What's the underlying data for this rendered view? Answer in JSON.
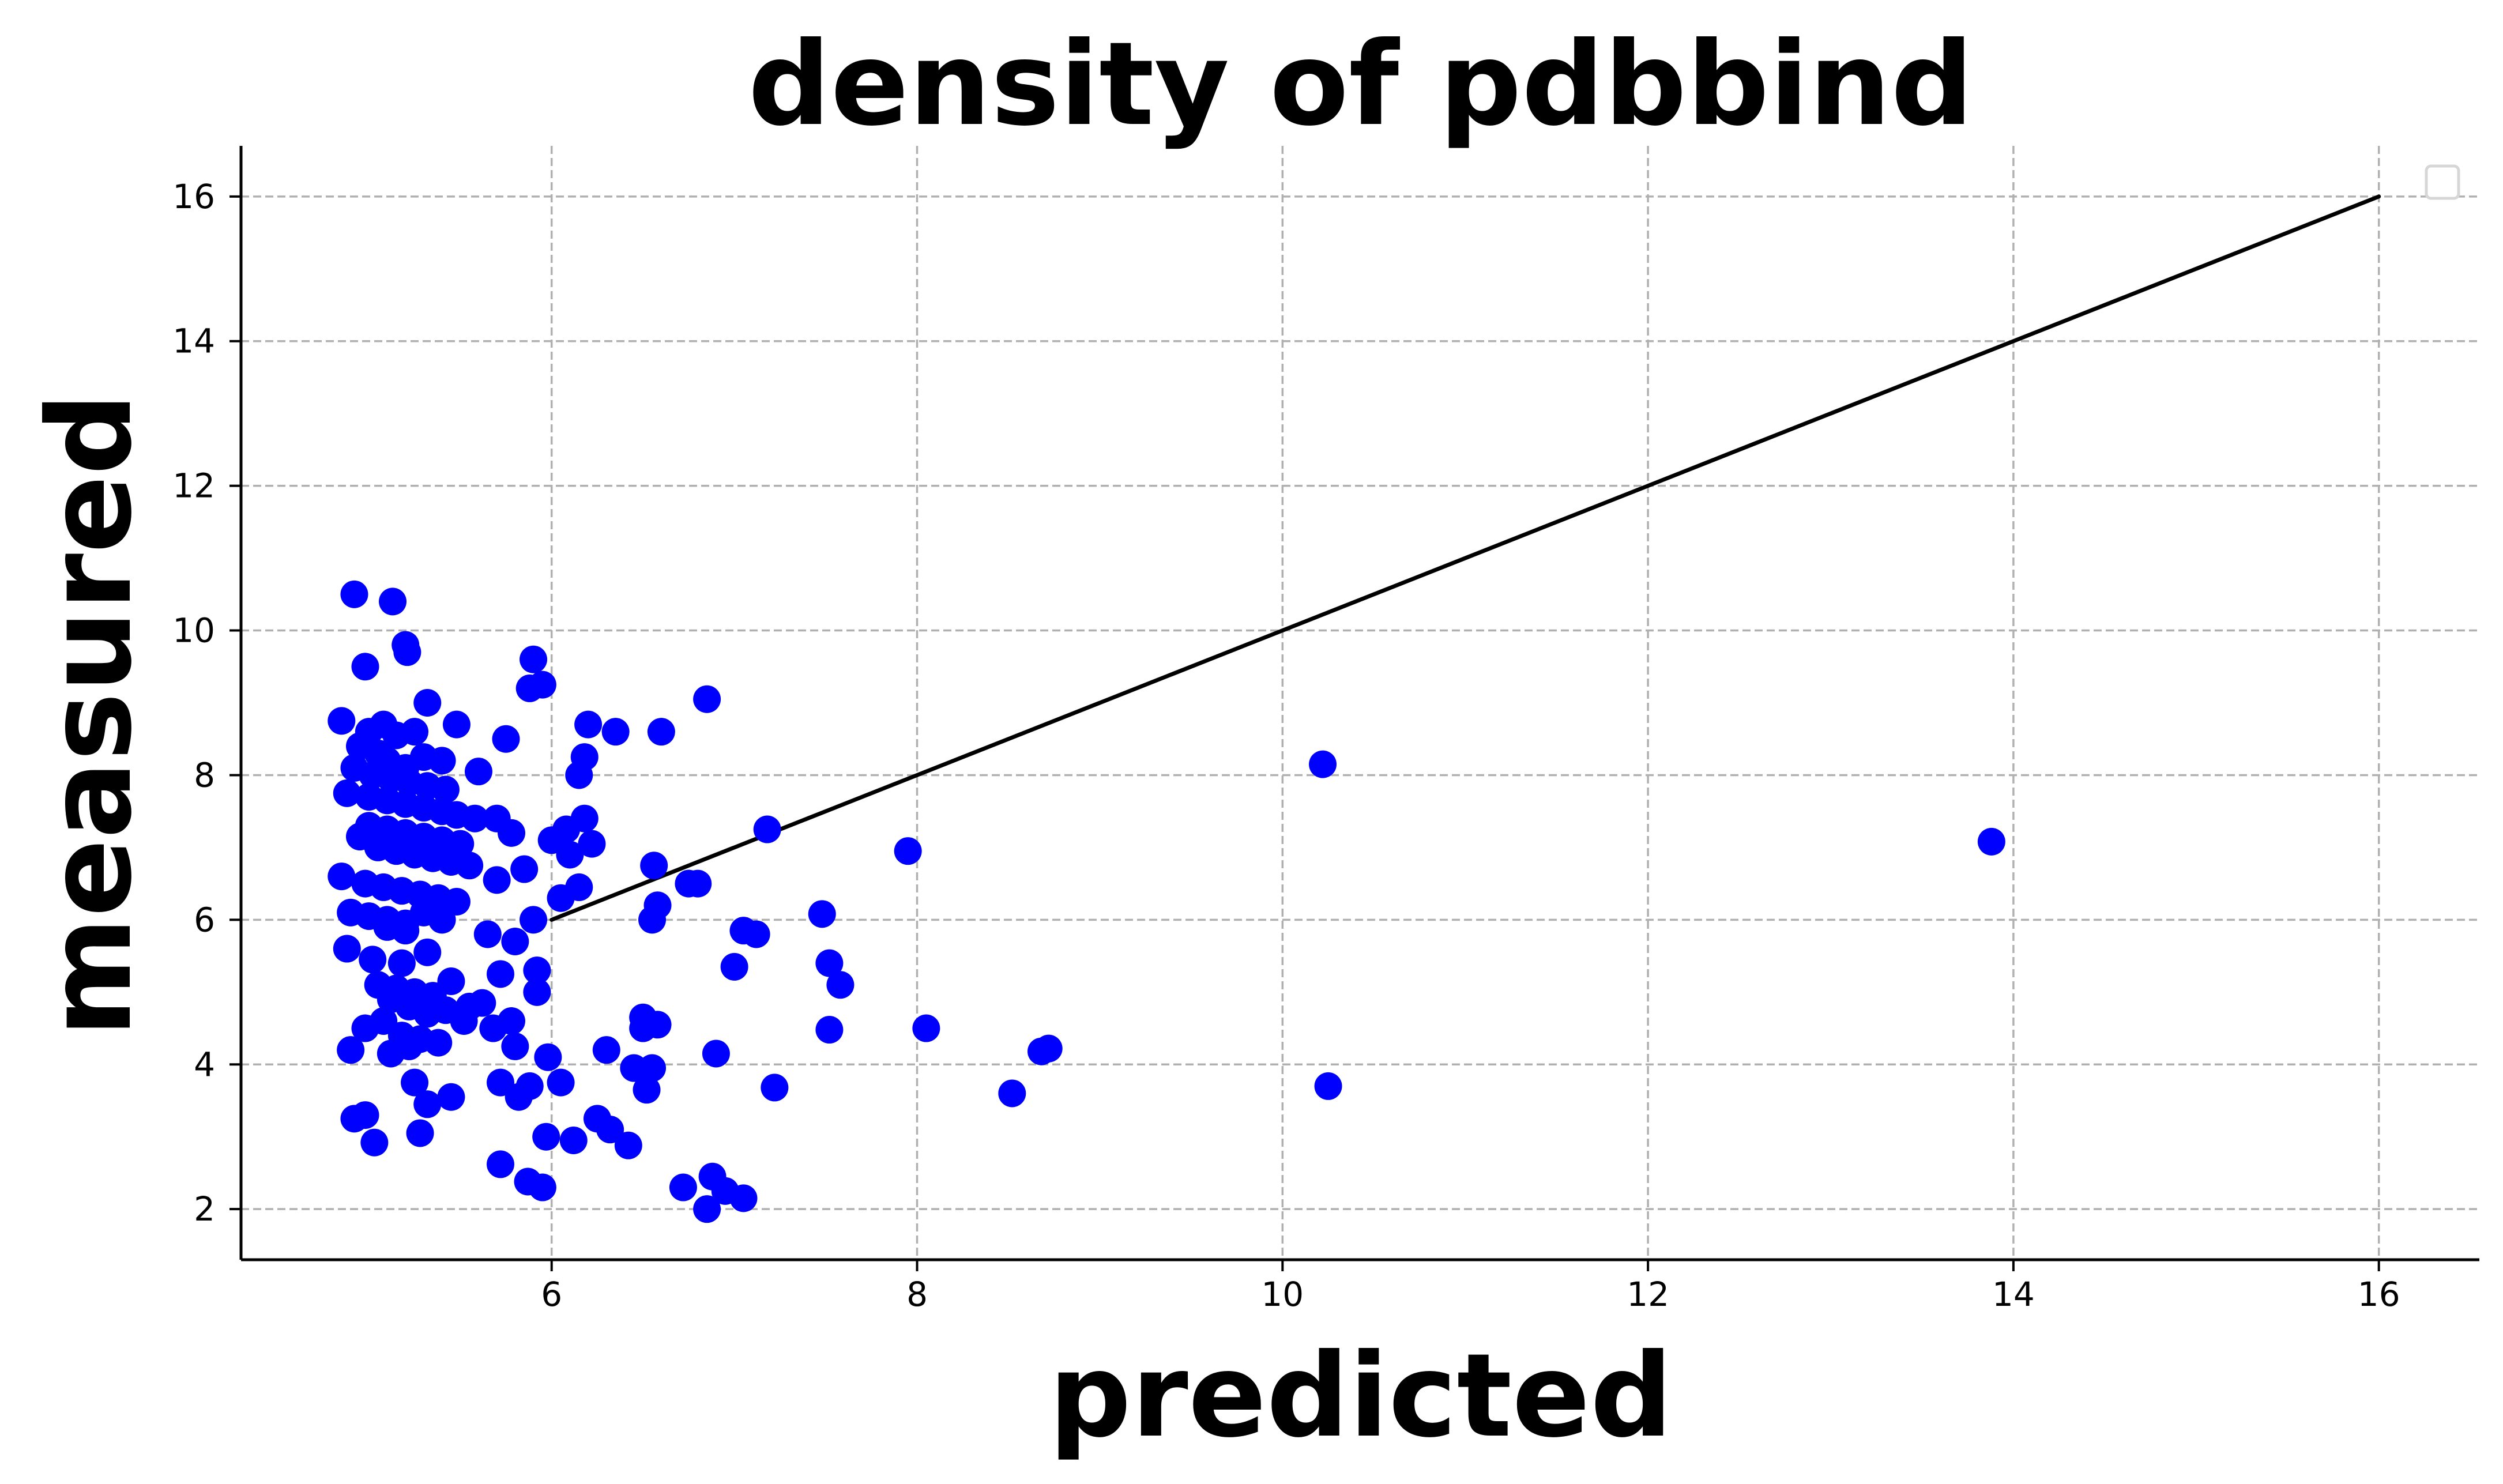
{
  "chart_data": {
    "type": "scatter",
    "title": "density of pdbbind",
    "xlabel": "predicted",
    "ylabel": "measured",
    "xlim": [
      4.3,
      16.55
    ],
    "ylim": [
      1.3,
      16.7
    ],
    "xticks": [
      6,
      8,
      10,
      12,
      14,
      16
    ],
    "yticks": [
      2,
      4,
      6,
      8,
      10,
      12,
      14,
      16
    ],
    "grid": true,
    "legend": "top-right (empty)",
    "colors": {
      "points": "#0000ff",
      "line": "#000000",
      "grid": "#b0b0b0"
    },
    "reference_line": {
      "x": [
        6,
        16
      ],
      "y": [
        6,
        16
      ]
    },
    "series": [
      {
        "points": [
          [
            4.85,
            8.75
          ],
          [
            4.92,
            10.5
          ],
          [
            5.13,
            10.4
          ],
          [
            5.2,
            9.8
          ],
          [
            5.21,
            9.7
          ],
          [
            4.98,
            9.5
          ],
          [
            5.32,
            9.0
          ],
          [
            5.48,
            8.7
          ],
          [
            5.08,
            8.7
          ],
          [
            5.0,
            8.6
          ],
          [
            5.15,
            8.55
          ],
          [
            5.25,
            8.6
          ],
          [
            4.95,
            8.4
          ],
          [
            5.05,
            8.3
          ],
          [
            5.1,
            8.2
          ],
          [
            5.2,
            8.1
          ],
          [
            5.3,
            8.25
          ],
          [
            5.4,
            8.2
          ],
          [
            4.92,
            8.1
          ],
          [
            5.02,
            8.0
          ],
          [
            5.12,
            7.95
          ],
          [
            5.22,
            7.9
          ],
          [
            5.32,
            7.85
          ],
          [
            5.42,
            7.8
          ],
          [
            4.88,
            7.75
          ],
          [
            5.0,
            7.7
          ],
          [
            5.1,
            7.65
          ],
          [
            5.2,
            7.6
          ],
          [
            5.3,
            7.55
          ],
          [
            5.4,
            7.5
          ],
          [
            5.48,
            7.45
          ],
          [
            5.58,
            7.4
          ],
          [
            5.0,
            7.3
          ],
          [
            5.1,
            7.25
          ],
          [
            5.2,
            7.2
          ],
          [
            5.3,
            7.15
          ],
          [
            5.4,
            7.1
          ],
          [
            5.5,
            7.05
          ],
          [
            4.95,
            7.15
          ],
          [
            5.05,
            7.0
          ],
          [
            5.15,
            6.95
          ],
          [
            5.25,
            6.9
          ],
          [
            5.35,
            6.85
          ],
          [
            5.45,
            6.8
          ],
          [
            5.55,
            6.75
          ],
          [
            4.85,
            6.6
          ],
          [
            4.98,
            6.5
          ],
          [
            5.08,
            6.45
          ],
          [
            5.18,
            6.4
          ],
          [
            5.28,
            6.35
          ],
          [
            5.38,
            6.3
          ],
          [
            5.48,
            6.25
          ],
          [
            4.9,
            6.1
          ],
          [
            5.0,
            6.05
          ],
          [
            5.1,
            6.0
          ],
          [
            5.2,
            5.95
          ],
          [
            5.3,
            6.1
          ],
          [
            5.4,
            6.0
          ],
          [
            5.1,
            5.9
          ],
          [
            5.2,
            5.85
          ],
          [
            4.88,
            5.6
          ],
          [
            5.02,
            5.45
          ],
          [
            5.18,
            5.4
          ],
          [
            5.32,
            5.55
          ],
          [
            5.05,
            5.1
          ],
          [
            5.15,
            5.05
          ],
          [
            5.25,
            5.0
          ],
          [
            5.35,
            4.95
          ],
          [
            5.45,
            5.15
          ],
          [
            5.55,
            4.8
          ],
          [
            5.12,
            4.9
          ],
          [
            5.22,
            4.8
          ],
          [
            5.32,
            4.7
          ],
          [
            5.42,
            4.75
          ],
          [
            5.52,
            4.6
          ],
          [
            5.62,
            4.85
          ],
          [
            5.68,
            4.5
          ],
          [
            5.08,
            4.6
          ],
          [
            4.98,
            4.5
          ],
          [
            5.18,
            4.4
          ],
          [
            5.28,
            4.35
          ],
          [
            5.38,
            4.3
          ],
          [
            4.9,
            4.2
          ],
          [
            5.12,
            4.15
          ],
          [
            5.22,
            4.25
          ],
          [
            5.25,
            3.75
          ],
          [
            5.32,
            3.45
          ],
          [
            5.45,
            3.55
          ],
          [
            4.92,
            3.25
          ],
          [
            4.98,
            3.3
          ],
          [
            5.03,
            2.92
          ],
          [
            5.28,
            3.05
          ],
          [
            5.6,
            8.05
          ],
          [
            5.7,
            7.4
          ],
          [
            5.78,
            7.2
          ],
          [
            5.85,
            6.7
          ],
          [
            5.75,
            8.5
          ],
          [
            5.9,
            9.6
          ],
          [
            5.88,
            9.2
          ],
          [
            5.95,
            9.25
          ],
          [
            5.7,
            6.55
          ],
          [
            5.9,
            6.0
          ],
          [
            5.8,
            5.7
          ],
          [
            5.72,
            5.25
          ],
          [
            5.92,
            5.3
          ],
          [
            5.92,
            5.0
          ],
          [
            5.65,
            5.8
          ],
          [
            5.78,
            4.6
          ],
          [
            5.8,
            4.25
          ],
          [
            5.72,
            3.75
          ],
          [
            5.82,
            3.55
          ],
          [
            5.88,
            3.7
          ],
          [
            5.72,
            2.62
          ],
          [
            5.87,
            2.38
          ],
          [
            5.95,
            2.3
          ],
          [
            5.97,
            3.0
          ],
          [
            5.98,
            4.1
          ],
          [
            6.0,
            7.1
          ],
          [
            6.05,
            6.3
          ],
          [
            6.08,
            7.25
          ],
          [
            6.1,
            6.9
          ],
          [
            6.15,
            6.45
          ],
          [
            6.18,
            7.4
          ],
          [
            6.2,
            8.7
          ],
          [
            6.18,
            8.25
          ],
          [
            6.15,
            8.0
          ],
          [
            6.22,
            7.05
          ],
          [
            6.05,
            3.75
          ],
          [
            6.12,
            2.95
          ],
          [
            6.25,
            3.25
          ],
          [
            6.32,
            3.1
          ],
          [
            6.3,
            4.2
          ],
          [
            6.42,
            2.88
          ],
          [
            6.45,
            3.95
          ],
          [
            6.5,
            4.5
          ],
          [
            6.5,
            4.65
          ],
          [
            6.52,
            3.65
          ],
          [
            6.55,
            3.95
          ],
          [
            6.58,
            4.55
          ],
          [
            6.55,
            6.0
          ],
          [
            6.58,
            6.2
          ],
          [
            6.56,
            6.75
          ],
          [
            6.35,
            8.6
          ],
          [
            6.6,
            8.6
          ],
          [
            6.75,
            6.5
          ],
          [
            6.8,
            6.5
          ],
          [
            6.85,
            9.05
          ],
          [
            6.72,
            2.3
          ],
          [
            6.85,
            2.0
          ],
          [
            6.88,
            2.45
          ],
          [
            6.95,
            2.25
          ],
          [
            7.05,
            2.15
          ],
          [
            6.9,
            4.15
          ],
          [
            7.0,
            5.35
          ],
          [
            7.05,
            5.85
          ],
          [
            7.12,
            5.8
          ],
          [
            7.18,
            7.25
          ],
          [
            7.22,
            3.68
          ],
          [
            7.48,
            6.08
          ],
          [
            7.52,
            5.4
          ],
          [
            7.58,
            5.1
          ],
          [
            7.52,
            4.48
          ],
          [
            7.95,
            6.95
          ],
          [
            8.05,
            4.5
          ],
          [
            8.52,
            3.6
          ],
          [
            8.68,
            4.18
          ],
          [
            8.72,
            4.22
          ],
          [
            10.22,
            8.15
          ],
          [
            10.25,
            3.7
          ],
          [
            13.88,
            7.08
          ]
        ]
      }
    ]
  }
}
